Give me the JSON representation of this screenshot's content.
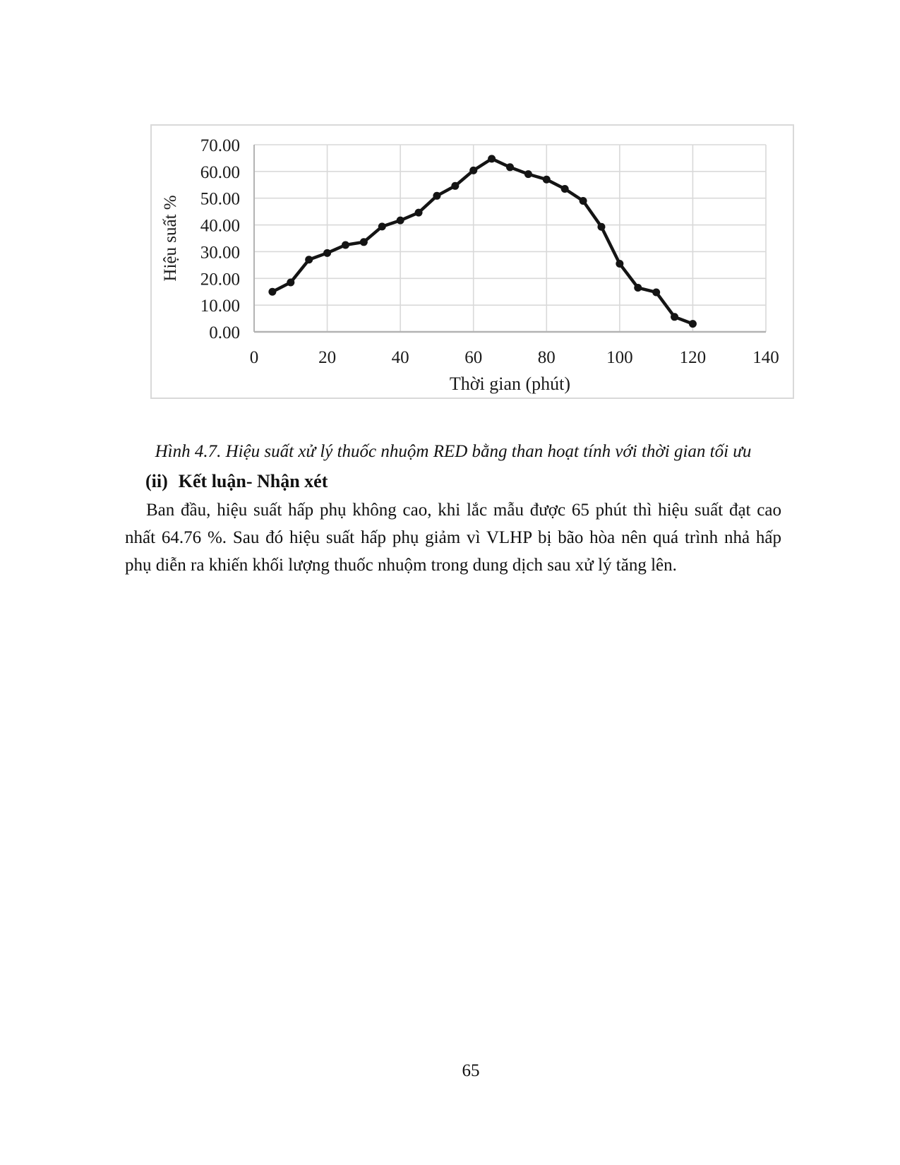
{
  "document": {
    "figure_caption": "Hình 4.7. Hiệu suất xử lý thuốc nhuộm RED bằng than hoạt tính với thời gian tối ưu",
    "heading": {
      "marker": "(ii)",
      "text": "Kết luận- Nhận xét"
    },
    "paragraph_lines": [
      "Ban đầu, hiệu suất hấp phụ không cao, khi lắc mẫu được 65 phút thì hiệu suất đạt cao",
      "nhất 64.76 %. Sau đó hiệu suất hấp phụ giảm vì VLHP bị bão hòa nên quá trình nhả hấp",
      "phụ diễn ra khiến khối lượng thuốc nhuộm trong dung dịch sau xử lý tăng lên."
    ],
    "page_number": "65"
  },
  "chart_data": {
    "type": "line",
    "x": [
      5,
      10,
      15,
      20,
      25,
      30,
      35,
      40,
      45,
      50,
      55,
      60,
      65,
      70,
      75,
      80,
      85,
      90,
      95,
      100,
      105,
      110,
      115,
      120
    ],
    "y": [
      15.0,
      18.5,
      27.0,
      29.5,
      32.5,
      33.6,
      39.4,
      41.7,
      44.6,
      50.9,
      54.6,
      60.4,
      64.76,
      61.6,
      59.0,
      57.0,
      53.5,
      49.0,
      39.3,
      25.5,
      16.5,
      14.8,
      5.6,
      3.0
    ],
    "title": "",
    "xlabel": "Thời gian (phút)",
    "ylabel": "Hiệu suất %",
    "xlim": [
      0,
      140
    ],
    "ylim": [
      0,
      70
    ],
    "xticks": [
      {
        "value": 0,
        "label": "0"
      },
      {
        "value": 20,
        "label": "20"
      },
      {
        "value": 40,
        "label": "40"
      },
      {
        "value": 60,
        "label": "60"
      },
      {
        "value": 80,
        "label": "80"
      },
      {
        "value": 100,
        "label": "100"
      },
      {
        "value": 120,
        "label": "120"
      },
      {
        "value": 140,
        "label": "140"
      }
    ],
    "yticks": [
      {
        "value": 0,
        "label": "0.00"
      },
      {
        "value": 10,
        "label": "10.00"
      },
      {
        "value": 20,
        "label": "20.00"
      },
      {
        "value": 30,
        "label": "30.00"
      },
      {
        "value": 40,
        "label": "40.00"
      },
      {
        "value": 50,
        "label": "50.00"
      },
      {
        "value": 60,
        "label": "60.00"
      },
      {
        "value": 70,
        "label": "70.00"
      }
    ],
    "grid": "both",
    "legend": "none",
    "marker": "filled-circle",
    "colors": {
      "line": "#141414",
      "marker": "#141414",
      "grid": "#d9d9d9",
      "axis": "#b3b3b3",
      "frame": "#d9d9d9",
      "text": "#1a1a1a"
    }
  }
}
